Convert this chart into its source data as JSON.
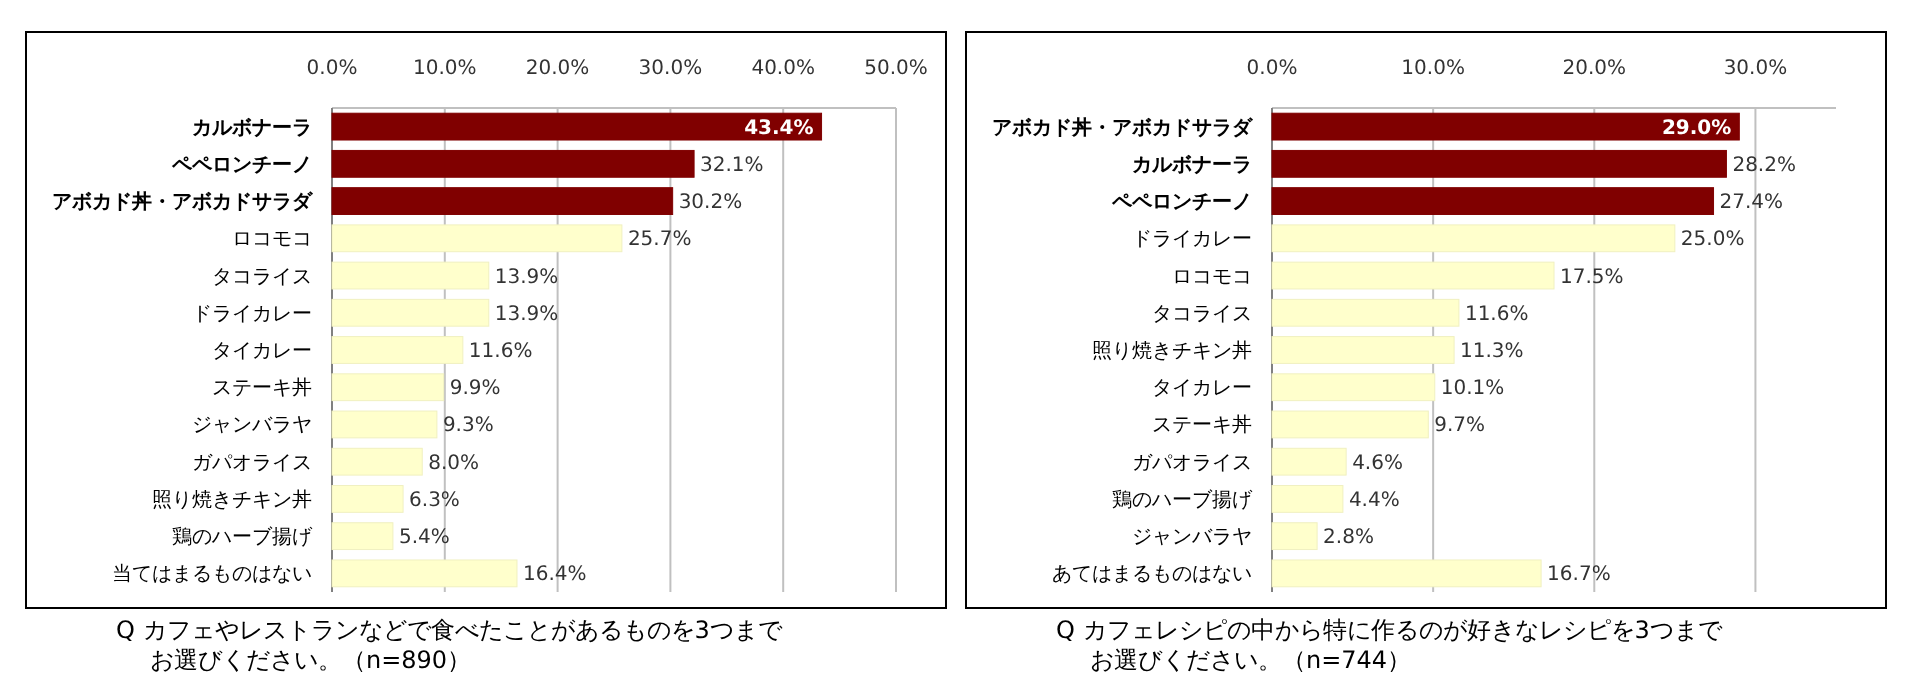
{
  "chart_data": [
    {
      "type": "bar",
      "orientation": "horizontal",
      "categories": [
        "カルボナーラ",
        "ペペロンチーノ",
        "アボカド丼・アボカドサラダ",
        "ロコモコ",
        "タコライス",
        "ドライカレー",
        "タイカレー",
        "ステーキ丼",
        "ジャンバラヤ",
        "ガパオライス",
        "照り焼きチキン丼",
        "鶏のハーブ揚げ",
        "当てはまるものはない"
      ],
      "values": [
        43.4,
        32.1,
        30.2,
        25.7,
        13.9,
        13.9,
        11.6,
        9.9,
        9.3,
        8.0,
        6.3,
        5.4,
        16.4
      ],
      "value_labels": [
        "43.4%",
        "32.1%",
        "30.2%",
        "25.7%",
        "13.9%",
        "13.9%",
        "11.6%",
        "9.9%",
        "9.3%",
        "8.0%",
        "6.3%",
        "5.4%",
        "16.4%"
      ],
      "colors": [
        "#800000",
        "#800000",
        "#800000",
        "#ffffcc",
        "#ffffcc",
        "#ffffcc",
        "#ffffcc",
        "#ffffcc",
        "#ffffcc",
        "#ffffcc",
        "#ffffcc",
        "#ffffcc",
        "#ffffcc"
      ],
      "xlim": [
        0,
        50
      ],
      "xticks": [
        {
          "value": 0,
          "label": "0.0%"
        },
        {
          "value": 10,
          "label": "10.0%"
        },
        {
          "value": 20,
          "label": "20.0%"
        },
        {
          "value": 30,
          "label": "30.0%"
        },
        {
          "value": 40,
          "label": "40.0%"
        },
        {
          "value": 50,
          "label": "50.0%"
        }
      ],
      "grid": "x",
      "annotations": [
        "Q カフェやレストランなどで食べたことがあるものを3つまで",
        "お選びください。（n=890）"
      ]
    },
    {
      "type": "bar",
      "orientation": "horizontal",
      "categories": [
        "アボカド丼・アボカドサラダ",
        "カルボナーラ",
        "ペペロンチーノ",
        "ドライカレー",
        "ロコモコ",
        "タコライス",
        "照り焼きチキン丼",
        "タイカレー",
        "ステーキ丼",
        "ガパオライス",
        "鶏のハーブ揚げ",
        "ジャンバラヤ",
        "あてはまるものはない"
      ],
      "values": [
        29.0,
        28.2,
        27.4,
        25.0,
        17.5,
        11.6,
        11.3,
        10.1,
        9.7,
        4.6,
        4.4,
        2.8,
        16.7
      ],
      "value_labels": [
        "29.0%",
        "28.2%",
        "27.4%",
        "25.0%",
        "17.5%",
        "11.6%",
        "11.3%",
        "10.1%",
        "9.7%",
        "4.6%",
        "4.4%",
        "2.8%",
        "16.7%"
      ],
      "colors": [
        "#800000",
        "#800000",
        "#800000",
        "#ffffcc",
        "#ffffcc",
        "#ffffcc",
        "#ffffcc",
        "#ffffcc",
        "#ffffcc",
        "#ffffcc",
        "#ffffcc",
        "#ffffcc",
        "#ffffcc"
      ],
      "xlim": [
        0,
        35
      ],
      "xticks": [
        {
          "value": 0,
          "label": "0.0%"
        },
        {
          "value": 10,
          "label": "10.0%"
        },
        {
          "value": 20,
          "label": "20.0%"
        },
        {
          "value": 30,
          "label": "30.0%"
        }
      ],
      "grid": "x",
      "annotations": [
        "Q カフェレシピの中から特に作るのが好きなレシピを3つまで",
        "お選びください。（n=744）"
      ]
    }
  ]
}
